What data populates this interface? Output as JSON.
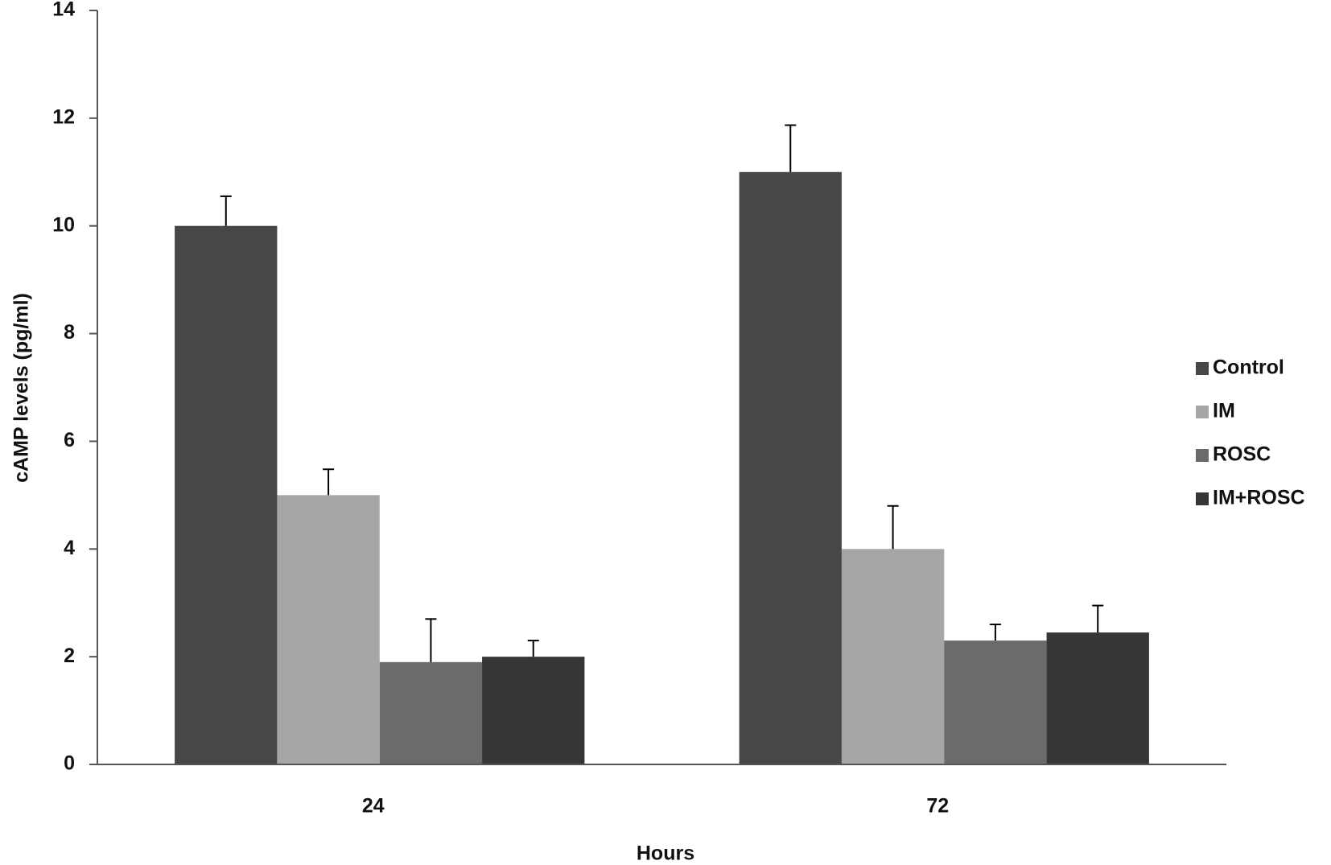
{
  "chart_data": {
    "type": "bar",
    "x_label": "Hours",
    "y_label": "cAMP levels (pg/ml)",
    "categories": [
      "24",
      "72"
    ],
    "series": [
      {
        "name": "Control",
        "color": "#474747",
        "values": [
          10,
          11
        ],
        "errors": [
          0.55,
          0.87
        ]
      },
      {
        "name": "IM",
        "color": "#a6a6a6",
        "values": [
          5,
          4
        ],
        "errors": [
          0.48,
          0.8
        ]
      },
      {
        "name": "ROSC",
        "color": "#6b6b6b",
        "values": [
          1.9,
          2.3
        ],
        "errors": [
          0.8,
          0.3
        ]
      },
      {
        "name": "IM+ROSC",
        "color": "#363636",
        "values": [
          2,
          2.45
        ],
        "errors": [
          0.3,
          0.5
        ]
      }
    ],
    "ylim": [
      0,
      14
    ],
    "yticks": [
      0,
      2,
      4,
      6,
      8,
      10,
      12,
      14
    ],
    "legend": "right"
  }
}
